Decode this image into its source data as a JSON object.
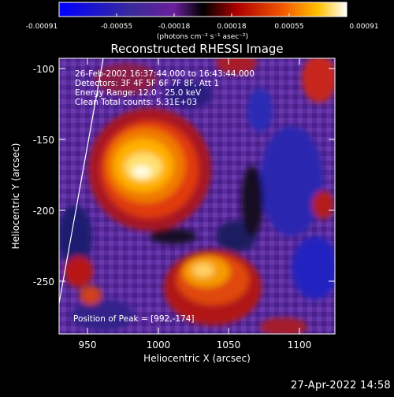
{
  "colorbar": {
    "ticks": [
      "-0.00091",
      "-0.00055",
      "-0.00018",
      "0.00018",
      "0.00055",
      "0.00091"
    ],
    "units": "(photons cm⁻² s⁻¹ asec⁻²)",
    "min": -0.00091,
    "max": 0.00091
  },
  "title": "Reconstructed RHESSI Image",
  "info": {
    "time_range": "26-Feb-2002 16:37:44.000 to 16:43:44.000",
    "detectors": "Detectors: 3F 4F 5F 6F 7F 8F, Att 1",
    "energy_range": "Energy Range: 12.0 - 25.0 keV",
    "clean": "Clean    Total counts: 5.31E+03"
  },
  "peak_label": "Position of Peak = [992,-174]",
  "x_axis": {
    "label": "Heliocentric X (arcsec)",
    "ticks": [
      "950",
      "1000",
      "1050",
      "1100"
    ],
    "range": [
      930,
      1125
    ]
  },
  "y_axis": {
    "label": "Heliocentric Y (arcsec)",
    "ticks": [
      "-100",
      "-150",
      "-200",
      "-250"
    ],
    "range": [
      -285,
      -90
    ]
  },
  "timestamp": "27-Apr-2022 14:58",
  "colors": {
    "background": "#000000",
    "colormap": [
      "#0000ff",
      "#3a2a9a",
      "#6a1f9a",
      "#a8106e",
      "#d21e1e",
      "#f26a00",
      "#ffb800",
      "#fff7b0"
    ]
  }
}
